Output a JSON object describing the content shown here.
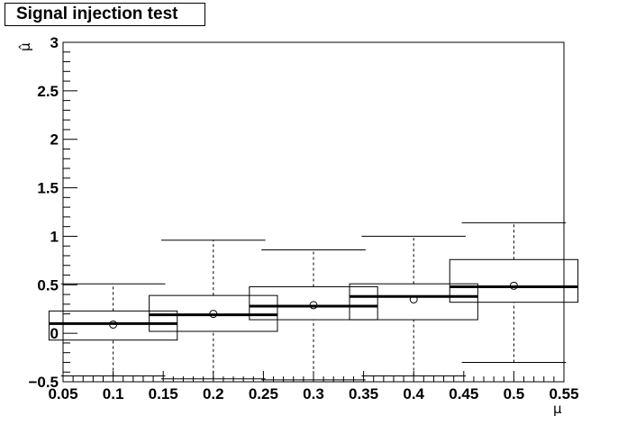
{
  "chart_data": {
    "type": "box",
    "title": "Signal injection test",
    "xlabel": "μ",
    "ylabel": "μ̂",
    "xlim": [
      0.05,
      0.55
    ],
    "ylim": [
      -0.5,
      3
    ],
    "x_ticks": [
      "0.05",
      "0.1",
      "0.15",
      "0.2",
      "0.25",
      "0.3",
      "0.35",
      "0.4",
      "0.45",
      "0.5",
      "0.55"
    ],
    "y_ticks": [
      "−0.5",
      "0",
      "0.5",
      "1",
      "1.5",
      "2",
      "2.5",
      "3"
    ],
    "grid": false,
    "legend": "none",
    "boxes": [
      {
        "x": 0.1,
        "whisker_low": -0.44,
        "q1": -0.07,
        "median": 0.1,
        "q3": 0.23,
        "whisker_high": 0.51,
        "mean": 0.09
      },
      {
        "x": 0.2,
        "whisker_low": -0.47,
        "q1": 0.02,
        "median": 0.19,
        "q3": 0.39,
        "whisker_high": 0.96,
        "mean": 0.2
      },
      {
        "x": 0.3,
        "whisker_low": -0.48,
        "q1": 0.14,
        "median": 0.28,
        "q3": 0.48,
        "whisker_high": 0.86,
        "mean": 0.29
      },
      {
        "x": 0.4,
        "whisker_low": -0.44,
        "q1": 0.14,
        "median": 0.38,
        "q3": 0.51,
        "whisker_high": 1.0,
        "mean": 0.35
      },
      {
        "x": 0.5,
        "whisker_low": -0.3,
        "q1": 0.32,
        "median": 0.48,
        "q3": 0.76,
        "whisker_high": 1.14,
        "mean": 0.49
      }
    ]
  }
}
